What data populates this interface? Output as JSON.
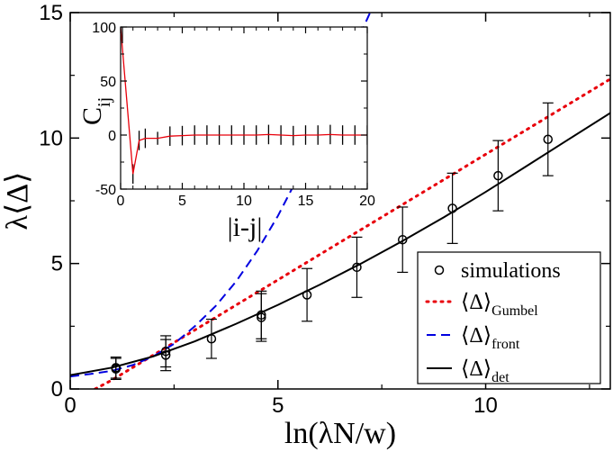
{
  "chart_data": [
    {
      "type": "scatter",
      "panel": "main",
      "xlabel": "ln(λN/w)",
      "ylabel": "λ⟨Δ⟩",
      "xlim": [
        0,
        13
      ],
      "ylim": [
        0,
        15
      ],
      "xticks": [
        0,
        5,
        10
      ],
      "yticks": [
        0,
        5,
        10,
        15
      ],
      "tick_labels_x": [
        "0",
        "5",
        "10"
      ],
      "tick_labels_y": [
        "0",
        "5",
        "10",
        "15"
      ],
      "legend_position": "bottom-right",
      "legend": [
        {
          "name": "simulations",
          "sub": "",
          "style": "circle",
          "color": "#000000"
        },
        {
          "name": "⟨Δ⟩",
          "sub": "Gumbel",
          "style": "dotted",
          "color": "#e8000b"
        },
        {
          "name": "⟨Δ⟩",
          "sub": "front",
          "style": "dashed",
          "color": "#0000e0"
        },
        {
          "name": "⟨Δ⟩",
          "sub": "det",
          "style": "solid",
          "color": "#000000"
        }
      ],
      "series": [
        {
          "name": "simulations",
          "kind": "points_with_errorbars",
          "color": "#000000",
          "points": [
            {
              "x": 1.1,
              "y": 0.8,
              "err": 0.42
            },
            {
              "x": 1.1,
              "y": 0.85,
              "err": 0.42
            },
            {
              "x": 2.3,
              "y": 1.35,
              "err": 0.62
            },
            {
              "x": 2.3,
              "y": 1.5,
              "err": 0.62
            },
            {
              "x": 3.4,
              "y": 2.0,
              "err": 0.78
            },
            {
              "x": 4.6,
              "y": 2.85,
              "err": 0.95
            },
            {
              "x": 4.6,
              "y": 2.95,
              "err": 0.95
            },
            {
              "x": 5.7,
              "y": 3.75,
              "err": 1.05
            },
            {
              "x": 6.9,
              "y": 4.85,
              "err": 1.2
            },
            {
              "x": 8.0,
              "y": 5.95,
              "err": 1.3
            },
            {
              "x": 9.2,
              "y": 7.2,
              "err": 1.4
            },
            {
              "x": 10.3,
              "y": 8.5,
              "err": 1.4
            },
            {
              "x": 11.5,
              "y": 9.95,
              "err": 1.45
            }
          ]
        },
        {
          "name": "Gumbel",
          "kind": "line",
          "color": "#e8000b",
          "x": [
            0.6,
            1.0,
            1.5,
            2.0,
            2.5,
            3.0,
            4.0,
            5.0,
            6.0,
            7.0,
            8.0,
            9.0,
            10.0,
            11.0,
            12.0,
            13.0
          ],
          "y": [
            0.0,
            0.35,
            0.85,
            1.35,
            1.85,
            2.35,
            3.35,
            4.35,
            5.35,
            6.35,
            7.35,
            8.35,
            9.35,
            10.35,
            11.35,
            12.35
          ]
        },
        {
          "name": "front",
          "kind": "line",
          "color": "#0000e0",
          "x": [
            0.0,
            0.5,
            1.0,
            1.5,
            2.0,
            2.5,
            3.0,
            3.5,
            4.0,
            4.5,
            5.0,
            5.5,
            6.0,
            6.5,
            7.0,
            7.3
          ],
          "y": [
            0.5,
            0.6,
            0.72,
            0.95,
            1.3,
            1.8,
            2.5,
            3.3,
            4.3,
            5.5,
            6.9,
            8.5,
            10.3,
            12.2,
            14.2,
            15.3
          ]
        },
        {
          "name": "det",
          "kind": "line",
          "color": "#000000",
          "x": [
            0.0,
            1.0,
            2.0,
            3.0,
            4.0,
            5.0,
            6.0,
            7.0,
            8.0,
            9.0,
            10.0,
            11.0,
            12.0,
            13.0
          ],
          "y": [
            0.55,
            0.85,
            1.3,
            1.9,
            2.6,
            3.35,
            4.15,
            5.0,
            5.9,
            6.85,
            7.85,
            8.9,
            9.95,
            11.0
          ]
        }
      ]
    },
    {
      "type": "line",
      "panel": "inset",
      "xlabel": "|i-j|",
      "ylabel": "C",
      "ylabel_sub": "ij",
      "xlim": [
        0,
        20
      ],
      "ylim": [
        -50,
        100
      ],
      "xticks": [
        0,
        5,
        10,
        15,
        20
      ],
      "yticks": [
        -50,
        0,
        50,
        100
      ],
      "tick_labels_x": [
        "0",
        "5",
        "10",
        "15",
        "20"
      ],
      "tick_labels_y": [
        "-50",
        "0",
        "50",
        "100"
      ],
      "series": [
        {
          "name": "C_ij",
          "color": "#e8000b",
          "x": [
            0,
            1,
            1.5,
            2,
            3,
            4,
            5,
            6,
            7,
            8,
            9,
            10,
            11,
            12,
            13,
            14,
            15,
            16,
            17,
            18,
            19,
            20
          ],
          "y": [
            100,
            -36,
            -5,
            -3,
            -3,
            -1,
            -0.5,
            0,
            0,
            0,
            0,
            0,
            0,
            0.5,
            0,
            -0.5,
            0,
            0,
            0.5,
            0,
            0,
            0
          ],
          "err": [
            0,
            3,
            3,
            3,
            2,
            3,
            3,
            3,
            3,
            3,
            3,
            3,
            3,
            3,
            3,
            3,
            3,
            3,
            3,
            3,
            3,
            3
          ]
        }
      ]
    }
  ]
}
